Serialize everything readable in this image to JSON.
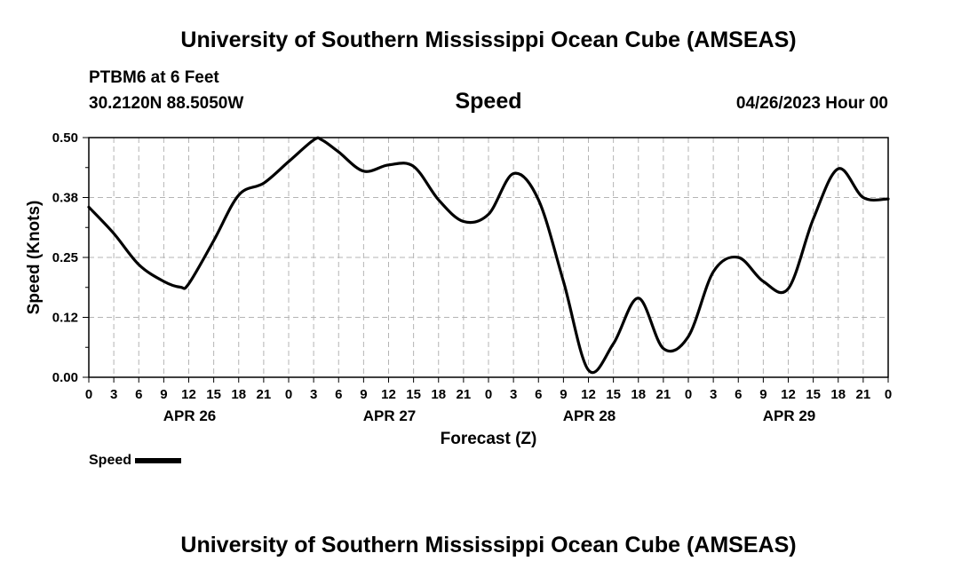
{
  "header": {
    "title": "University of Southern Mississippi Ocean Cube (AMSEAS)",
    "station": "PTBM6 at 6 Feet",
    "coords": "30.2120N  88.5050W",
    "chart_title": "Speed",
    "datetime": "04/26/2023 Hour 00"
  },
  "footer": {
    "title": "University of Southern Mississippi Ocean Cube (AMSEAS)"
  },
  "legend": {
    "label": "Speed",
    "color": "#000000"
  },
  "chart_data": {
    "type": "line",
    "title": "Speed",
    "xlabel": "Forecast (Z)",
    "ylabel": "Speed (Knots)",
    "xlim": [
      0,
      96
    ],
    "ylim": [
      0,
      0.5
    ],
    "yticks": [
      {
        "value": 0,
        "label": "0.00"
      },
      {
        "value": 0.125,
        "label": "0.12"
      },
      {
        "value": 0.25,
        "label": "0.25"
      },
      {
        "value": 0.375,
        "label": "0.38"
      },
      {
        "value": 0.5,
        "label": "0.50"
      }
    ],
    "xticks": [
      {
        "value": 0,
        "label": "0"
      },
      {
        "value": 3,
        "label": "3"
      },
      {
        "value": 6,
        "label": "6"
      },
      {
        "value": 9,
        "label": "9"
      },
      {
        "value": 12,
        "label": "12"
      },
      {
        "value": 15,
        "label": "15"
      },
      {
        "value": 18,
        "label": "18"
      },
      {
        "value": 21,
        "label": "21"
      },
      {
        "value": 24,
        "label": "0"
      },
      {
        "value": 27,
        "label": "3"
      },
      {
        "value": 30,
        "label": "6"
      },
      {
        "value": 33,
        "label": "9"
      },
      {
        "value": 36,
        "label": "12"
      },
      {
        "value": 39,
        "label": "15"
      },
      {
        "value": 42,
        "label": "18"
      },
      {
        "value": 45,
        "label": "21"
      },
      {
        "value": 48,
        "label": "0"
      },
      {
        "value": 51,
        "label": "3"
      },
      {
        "value": 54,
        "label": "6"
      },
      {
        "value": 57,
        "label": "9"
      },
      {
        "value": 60,
        "label": "12"
      },
      {
        "value": 63,
        "label": "15"
      },
      {
        "value": 66,
        "label": "18"
      },
      {
        "value": 69,
        "label": "21"
      },
      {
        "value": 72,
        "label": "0"
      },
      {
        "value": 75,
        "label": "3"
      },
      {
        "value": 78,
        "label": "6"
      },
      {
        "value": 81,
        "label": "9"
      },
      {
        "value": 84,
        "label": "12"
      },
      {
        "value": 87,
        "label": "15"
      },
      {
        "value": 90,
        "label": "18"
      },
      {
        "value": 93,
        "label": "21"
      },
      {
        "value": 96,
        "label": "0"
      }
    ],
    "day_labels": [
      {
        "value": 12,
        "label": "APR 26"
      },
      {
        "value": 36,
        "label": "APR 27"
      },
      {
        "value": 60,
        "label": "APR 28"
      },
      {
        "value": 84,
        "label": "APR 29"
      }
    ],
    "grid": true,
    "series": [
      {
        "name": "Speed",
        "color": "#000000",
        "x": [
          0,
          3,
          6,
          9,
          11,
          12,
          15,
          18,
          21,
          24,
          27,
          28,
          30,
          33,
          36,
          39,
          42,
          45,
          48,
          51,
          54,
          57,
          60,
          63,
          66,
          69,
          72,
          75,
          78,
          81,
          84,
          87,
          90,
          93,
          96
        ],
        "y": [
          0.355,
          0.3,
          0.235,
          0.2,
          0.188,
          0.195,
          0.285,
          0.38,
          0.405,
          0.45,
          0.495,
          0.495,
          0.47,
          0.43,
          0.443,
          0.44,
          0.37,
          0.325,
          0.34,
          0.425,
          0.37,
          0.2,
          0.015,
          0.07,
          0.165,
          0.06,
          0.085,
          0.22,
          0.25,
          0.2,
          0.185,
          0.33,
          0.435,
          0.375,
          0.372
        ]
      }
    ]
  }
}
